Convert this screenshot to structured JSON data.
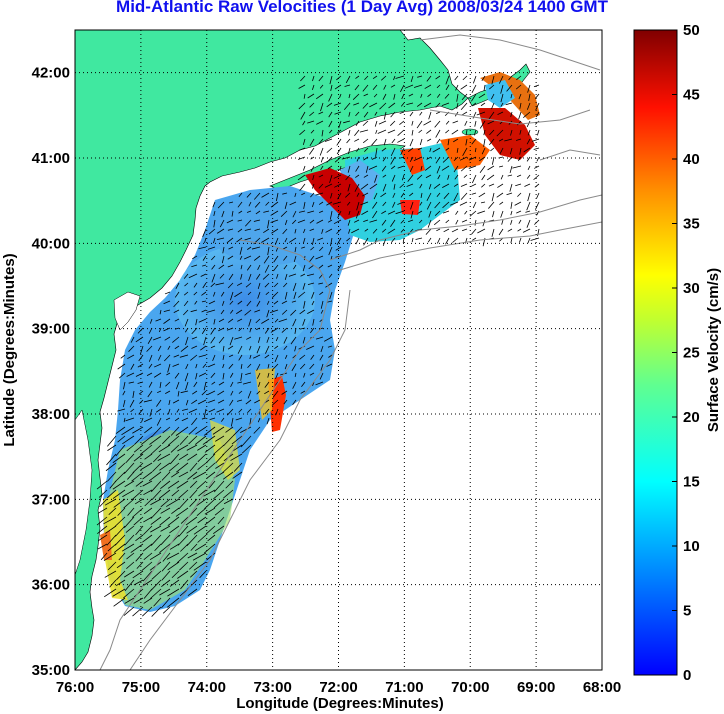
{
  "title": "Mid-Atlantic Raw Velocities (1 Day Avg) 2008/03/24 1400 GMT",
  "x_axis": {
    "label": "Longitude (Degrees:Minutes)",
    "ticks": [
      "76:00",
      "75:00",
      "74:00",
      "73:00",
      "72:00",
      "71:00",
      "70:00",
      "69:00",
      "68:00"
    ]
  },
  "y_axis": {
    "label": "Latitude (Degrees:Minutes)",
    "ticks": [
      "35:00",
      "36:00",
      "37:00",
      "38:00",
      "39:00",
      "40:00",
      "41:00",
      "42:00"
    ]
  },
  "colorbar": {
    "label": "Surface Velocity (cm/s)",
    "ticks": [
      "0",
      "5",
      "10",
      "15",
      "20",
      "25",
      "30",
      "35",
      "40",
      "45",
      "50"
    ],
    "min": 0,
    "max": 50
  },
  "map": {
    "lon_range": [
      -76,
      -68
    ],
    "lat_range": [
      35,
      42.5
    ],
    "grid": "dotted",
    "colors": {
      "land": "#40e8a0",
      "water": "#ffffff",
      "coast_contours": "#8a8a8a",
      "vectors": "#000000"
    }
  }
}
